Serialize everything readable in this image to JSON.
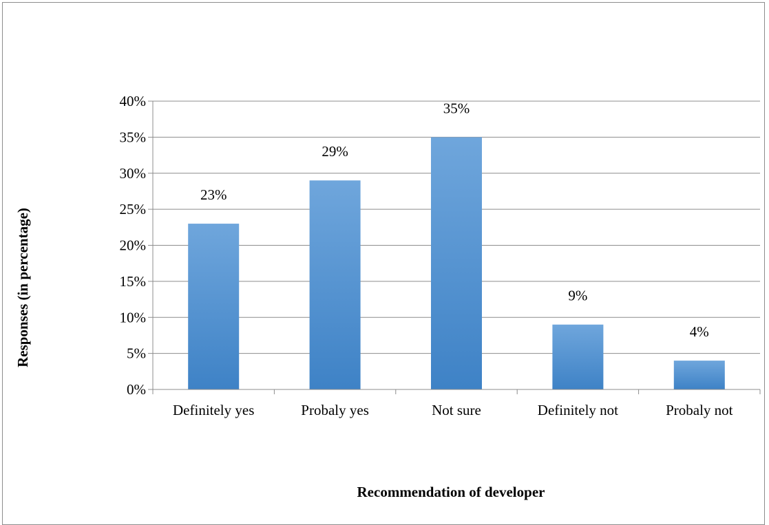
{
  "chart_data": {
    "type": "bar",
    "title": "",
    "xlabel": "Recommendation of developer",
    "ylabel": "Responses (in percentage)",
    "categories": [
      "Definitely yes",
      "Probaly yes",
      "Not sure",
      "Definitely not",
      "Probaly not"
    ],
    "values": [
      23,
      29,
      35,
      9,
      4
    ],
    "data_labels": [
      "23%",
      "29%",
      "35%",
      "9%",
      "4%"
    ],
    "y_ticks": [
      "0%",
      "5%",
      "10%",
      "15%",
      "20%",
      "25%",
      "30%",
      "35%",
      "40%"
    ],
    "ylim": [
      0,
      40
    ],
    "grid": true,
    "legend": "none",
    "colors": {
      "bar_top": "#6fa6dc",
      "bar_bottom": "#3e82c6",
      "gridline": "#8c8c8c",
      "axis": "#8c8c8c"
    }
  }
}
